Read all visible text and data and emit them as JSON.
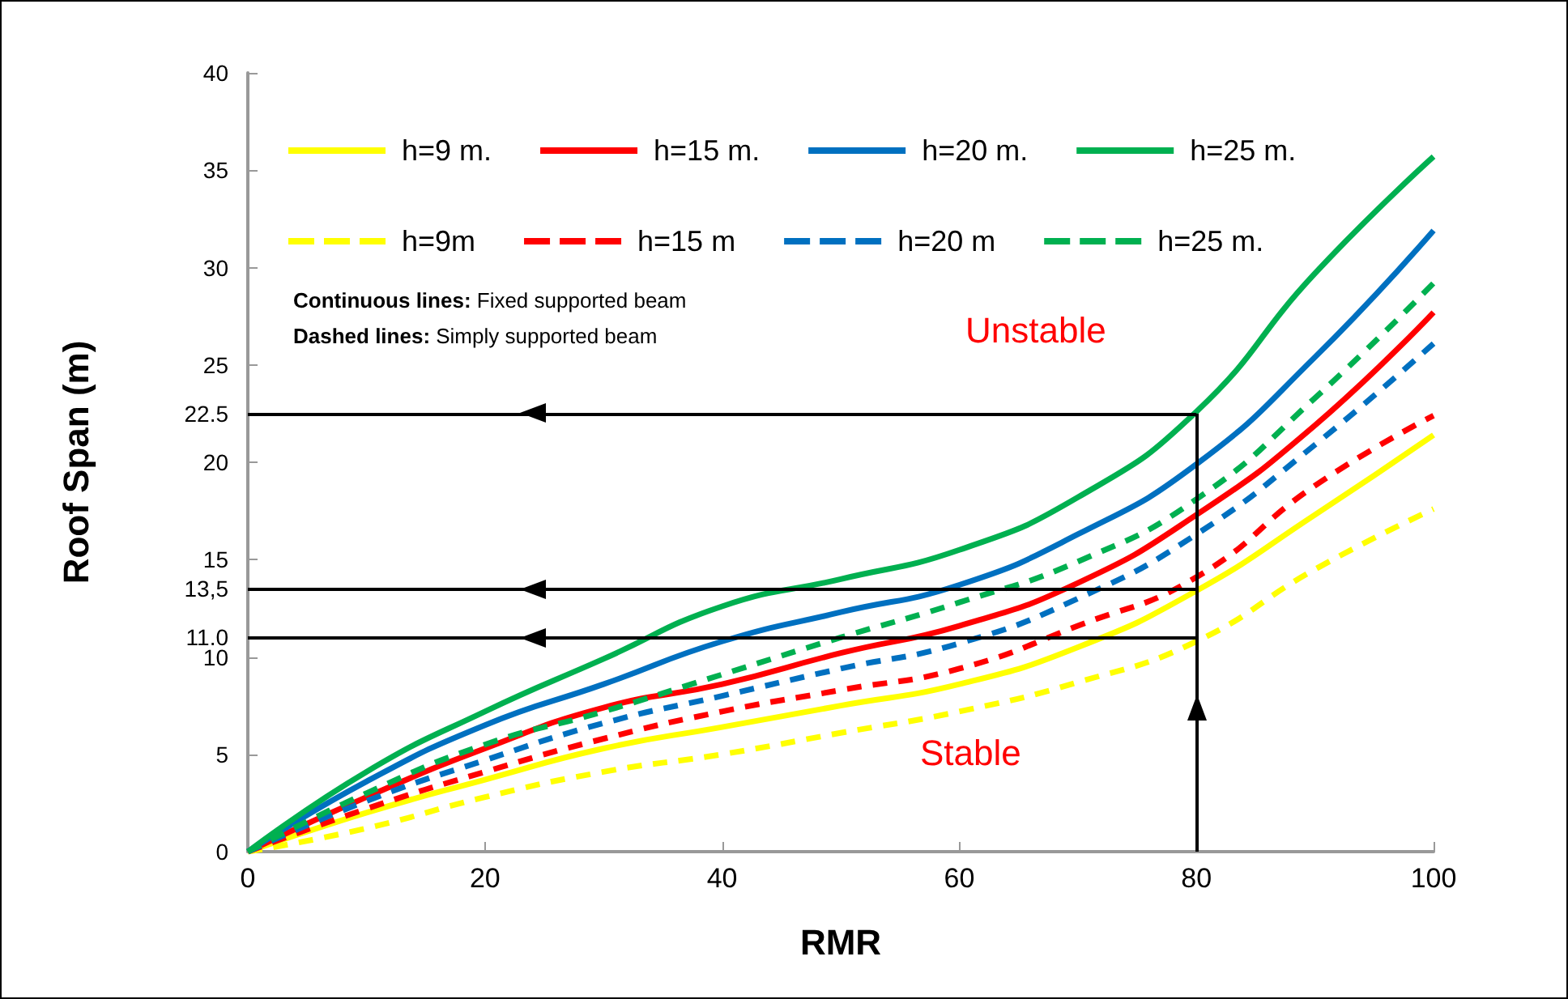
{
  "chart_data": {
    "type": "line",
    "xlabel": "RMR",
    "ylabel": "Roof Span (m)",
    "x": [
      0,
      10,
      20,
      30,
      40,
      50,
      60,
      70,
      80,
      90,
      100
    ],
    "series": [
      {
        "name": "h=9 m.",
        "color": "#ffff00",
        "line_style": "solid",
        "values": [
          0,
          2.0,
          3.7,
          5.3,
          6.4,
          7.5,
          8.6,
          10.5,
          13.4,
          17.3,
          21.4
        ]
      },
      {
        "name": "h=15 m.",
        "color": "#ff0000",
        "line_style": "solid",
        "values": [
          0,
          2.8,
          5.3,
          7.4,
          8.6,
          10.2,
          11.6,
          13.8,
          17.3,
          21.9,
          27.7
        ]
      },
      {
        "name": "h=20 m.",
        "color": "#0070c0",
        "line_style": "solid",
        "values": [
          0,
          3.6,
          6.5,
          8.6,
          10.8,
          12.3,
          13.7,
          16.3,
          19.9,
          25.4,
          31.9
        ]
      },
      {
        "name": "h=25 m.",
        "color": "#00b050",
        "line_style": "solid",
        "values": [
          0,
          4.1,
          7.2,
          9.9,
          12.6,
          14.0,
          15.5,
          18.2,
          22.6,
          29.7,
          35.7
        ]
      },
      {
        "name": "h=9m",
        "color": "#ffff00",
        "line_style": "dashed",
        "values": [
          0,
          1.2,
          2.8,
          4.1,
          5.0,
          6.1,
          7.2,
          8.7,
          10.8,
          14.5,
          17.6
        ]
      },
      {
        "name": "h=15 m",
        "color": "#ff0000",
        "line_style": "dashed",
        "values": [
          0,
          2.2,
          4.1,
          5.8,
          7.2,
          8.3,
          9.4,
          11.6,
          14.1,
          18.8,
          22.4
        ]
      },
      {
        "name": "h=20 m",
        "color": "#0070c0",
        "line_style": "dashed",
        "values": [
          0,
          2.6,
          4.7,
          6.6,
          8.0,
          9.4,
          10.7,
          13.0,
          16.3,
          20.9,
          26.1
        ]
      },
      {
        "name": "h=25 m.",
        "color": "#00b050",
        "line_style": "dashed",
        "values": [
          0,
          3.0,
          5.5,
          7.2,
          9.1,
          11.0,
          12.8,
          14.9,
          18.1,
          23.3,
          29.2
        ]
      }
    ],
    "xlim": [
      0,
      100
    ],
    "xticks": [
      0,
      20,
      40,
      60,
      80,
      100
    ],
    "ylim": [
      0,
      40
    ],
    "yticks": [
      0,
      5,
      10,
      {
        "value": 11.0,
        "label": "11.0"
      },
      {
        "value": 13.5,
        "label": "13,5"
      },
      15,
      20,
      {
        "value": 22.5,
        "label": "22.5"
      },
      25,
      30,
      35,
      40
    ],
    "ref_lines": [
      {
        "axis": "x",
        "value": 80,
        "color": "#000000"
      },
      {
        "axis": "y",
        "value": 22.5,
        "color": "#000000"
      },
      {
        "axis": "y",
        "value": 13.5,
        "color": "#000000"
      },
      {
        "axis": "y",
        "value": 11.0,
        "color": "#000000"
      }
    ],
    "annotations": [
      "Continuous lines: Fixed supported beam",
      "Dashed lines: Simply supported beam",
      "Unstable",
      "Stable"
    ],
    "legend": "top left",
    "grid": false,
    "marker": "none"
  }
}
